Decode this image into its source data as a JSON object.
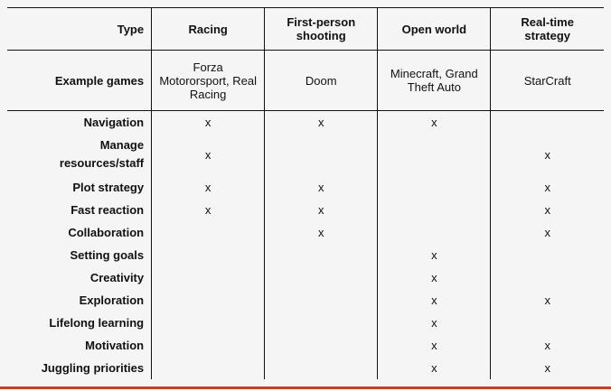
{
  "header": {
    "label": "Type",
    "columns": [
      "Racing",
      "First-person shooting",
      "Open world",
      "Real-time strategy"
    ]
  },
  "examples": {
    "label": "Example games",
    "values": [
      "Forza Motororsport, Real Racing",
      "Doom",
      "Minecraft, Grand Theft Auto",
      "StarCraft"
    ]
  },
  "mark": "x",
  "rows": [
    {
      "label": "Navigation",
      "marks": [
        true,
        true,
        true,
        false
      ]
    },
    {
      "label": "Manage resources/staff",
      "marks": [
        true,
        false,
        false,
        true
      ]
    },
    {
      "label": "Plot strategy",
      "marks": [
        true,
        true,
        false,
        true
      ]
    },
    {
      "label": "Fast reaction",
      "marks": [
        true,
        true,
        false,
        true
      ]
    },
    {
      "label": "Collaboration",
      "marks": [
        false,
        true,
        false,
        true
      ]
    },
    {
      "label": "Setting goals",
      "marks": [
        false,
        false,
        true,
        false
      ]
    },
    {
      "label": "Creativity",
      "marks": [
        false,
        false,
        true,
        false
      ]
    },
    {
      "label": "Exploration",
      "marks": [
        false,
        false,
        true,
        true
      ]
    },
    {
      "label": "Lifelong learning",
      "marks": [
        false,
        false,
        true,
        false
      ]
    },
    {
      "label": "Motivation",
      "marks": [
        false,
        false,
        true,
        true
      ]
    },
    {
      "label": "Juggling priorities",
      "marks": [
        false,
        false,
        true,
        true
      ]
    }
  ],
  "accent_rule_color": "#c0441f"
}
